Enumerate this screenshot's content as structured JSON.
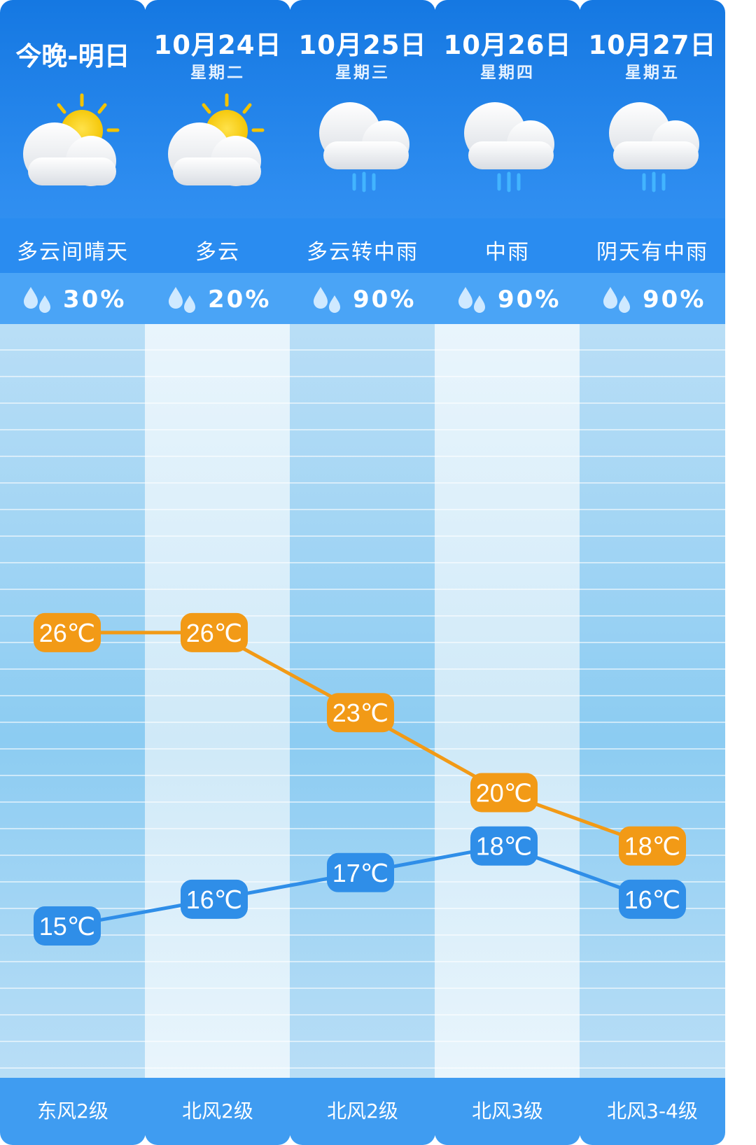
{
  "days": [
    {
      "label": "今晚-明日",
      "date": "",
      "weekday": "",
      "weather": "多云间晴天",
      "icon": "partly-cloudy-icon",
      "rain_prob": "30%",
      "wind": "东风2级"
    },
    {
      "label": "",
      "date": "10月24日",
      "weekday": "星期二",
      "weather": "多云",
      "icon": "partly-cloudy-icon",
      "rain_prob": "20%",
      "wind": "北风2级"
    },
    {
      "label": "",
      "date": "10月25日",
      "weekday": "星期三",
      "weather": "多云转中雨",
      "icon": "rain-cloud-icon",
      "rain_prob": "90%",
      "wind": "北风2级"
    },
    {
      "label": "",
      "date": "10月26日",
      "weekday": "星期四",
      "weather": "中雨",
      "icon": "rain-cloud-icon",
      "rain_prob": "90%",
      "wind": "北风3级"
    },
    {
      "label": "",
      "date": "10月27日",
      "weekday": "星期五",
      "weather": "阴天有中雨",
      "icon": "rain-cloud-icon",
      "rain_prob": "90%",
      "wind": "北风3-4级"
    }
  ],
  "chart_data": {
    "type": "line",
    "categories": [
      "今晚-明日",
      "10月24日",
      "10月25日",
      "10月26日",
      "10月27日"
    ],
    "series": [
      {
        "values": [
          26,
          26,
          23,
          20,
          18
        ],
        "labels": [
          "26℃",
          "26℃",
          "23℃",
          "20℃",
          "18℃"
        ],
        "color": "#f29a16"
      },
      {
        "values": [
          15,
          16,
          17,
          18,
          16
        ],
        "labels": [
          "15℃",
          "16℃",
          "17℃",
          "18℃",
          "16℃"
        ],
        "color": "#2f8ee8"
      }
    ],
    "grid": true,
    "unit": "℃"
  },
  "colors": {
    "header_blue": "#1578e2",
    "high_orange": "#f29a16",
    "low_blue": "#2f8ee8"
  }
}
